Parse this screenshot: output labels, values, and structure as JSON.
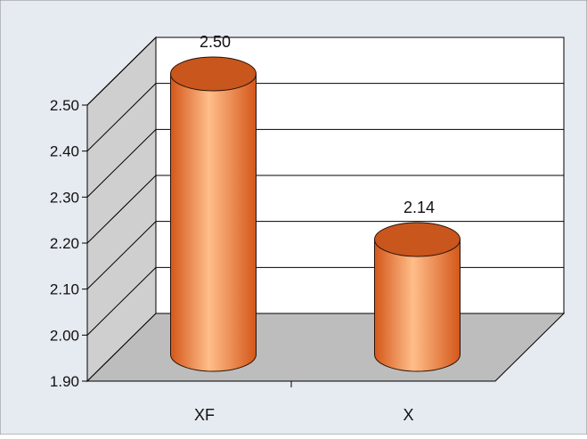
{
  "chart_data": {
    "type": "bar",
    "style": "3d-cylinder",
    "categories": [
      "XF",
      "X"
    ],
    "values": [
      2.5,
      2.14
    ],
    "data_labels": [
      "2.50",
      "2.14"
    ],
    "y_ticks": [
      "1.90",
      "2.00",
      "2.10",
      "2.20",
      "2.30",
      "2.40",
      "2.50"
    ],
    "ylim": [
      1.9,
      2.5
    ],
    "title": "",
    "xlabel": "",
    "ylabel": "",
    "grid": true,
    "legend": "none"
  },
  "colors": {
    "background": "#e6eaf1",
    "wall": "#ffffff",
    "side_wall": "#cfcfcf",
    "floor": "#bdbdbd",
    "grid_line": "#000000",
    "bar_dark": "#d4571a",
    "bar_light": "#ffbe8a",
    "bar_top": "#c8561d"
  }
}
